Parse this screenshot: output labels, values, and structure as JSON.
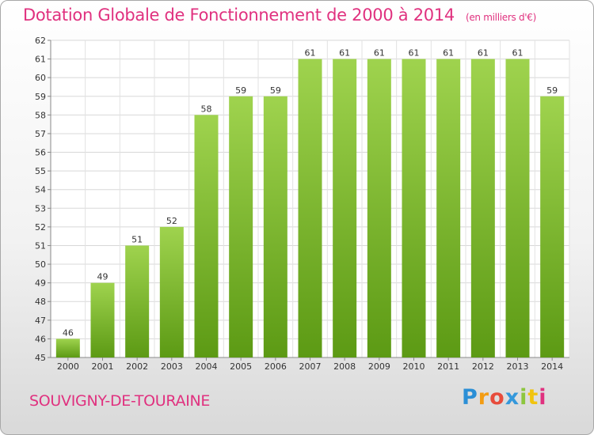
{
  "header": {
    "title": "Dotation Globale de Fonctionnement de 2000 à 2014",
    "unit": "(en milliers d'€)"
  },
  "footer": {
    "city": "SOUVIGNY-DE-TOURAINE",
    "logo": [
      "P",
      "r",
      "o",
      "x",
      "i",
      "t",
      "i"
    ]
  },
  "colors": {
    "accent": "#e0317f",
    "bar_top": "#9fd34e",
    "bar_bottom": "#5c9a14"
  },
  "chart_data": {
    "type": "bar",
    "title": "Dotation Globale de Fonctionnement de 2000 à 2014",
    "subtitle": "(en milliers d'€)",
    "categories": [
      "2000",
      "2001",
      "2002",
      "2003",
      "2004",
      "2005",
      "2006",
      "2007",
      "2008",
      "2009",
      "2010",
      "2011",
      "2012",
      "2013",
      "2014"
    ],
    "values": [
      46,
      49,
      51,
      52,
      58,
      59,
      59,
      61,
      61,
      61,
      61,
      61,
      61,
      61,
      59
    ],
    "ylim": [
      45,
      62
    ],
    "yticks": [
      45,
      46,
      47,
      48,
      49,
      50,
      51,
      52,
      53,
      54,
      55,
      56,
      57,
      58,
      59,
      60,
      61,
      62
    ],
    "grid": true,
    "legend": "none"
  }
}
